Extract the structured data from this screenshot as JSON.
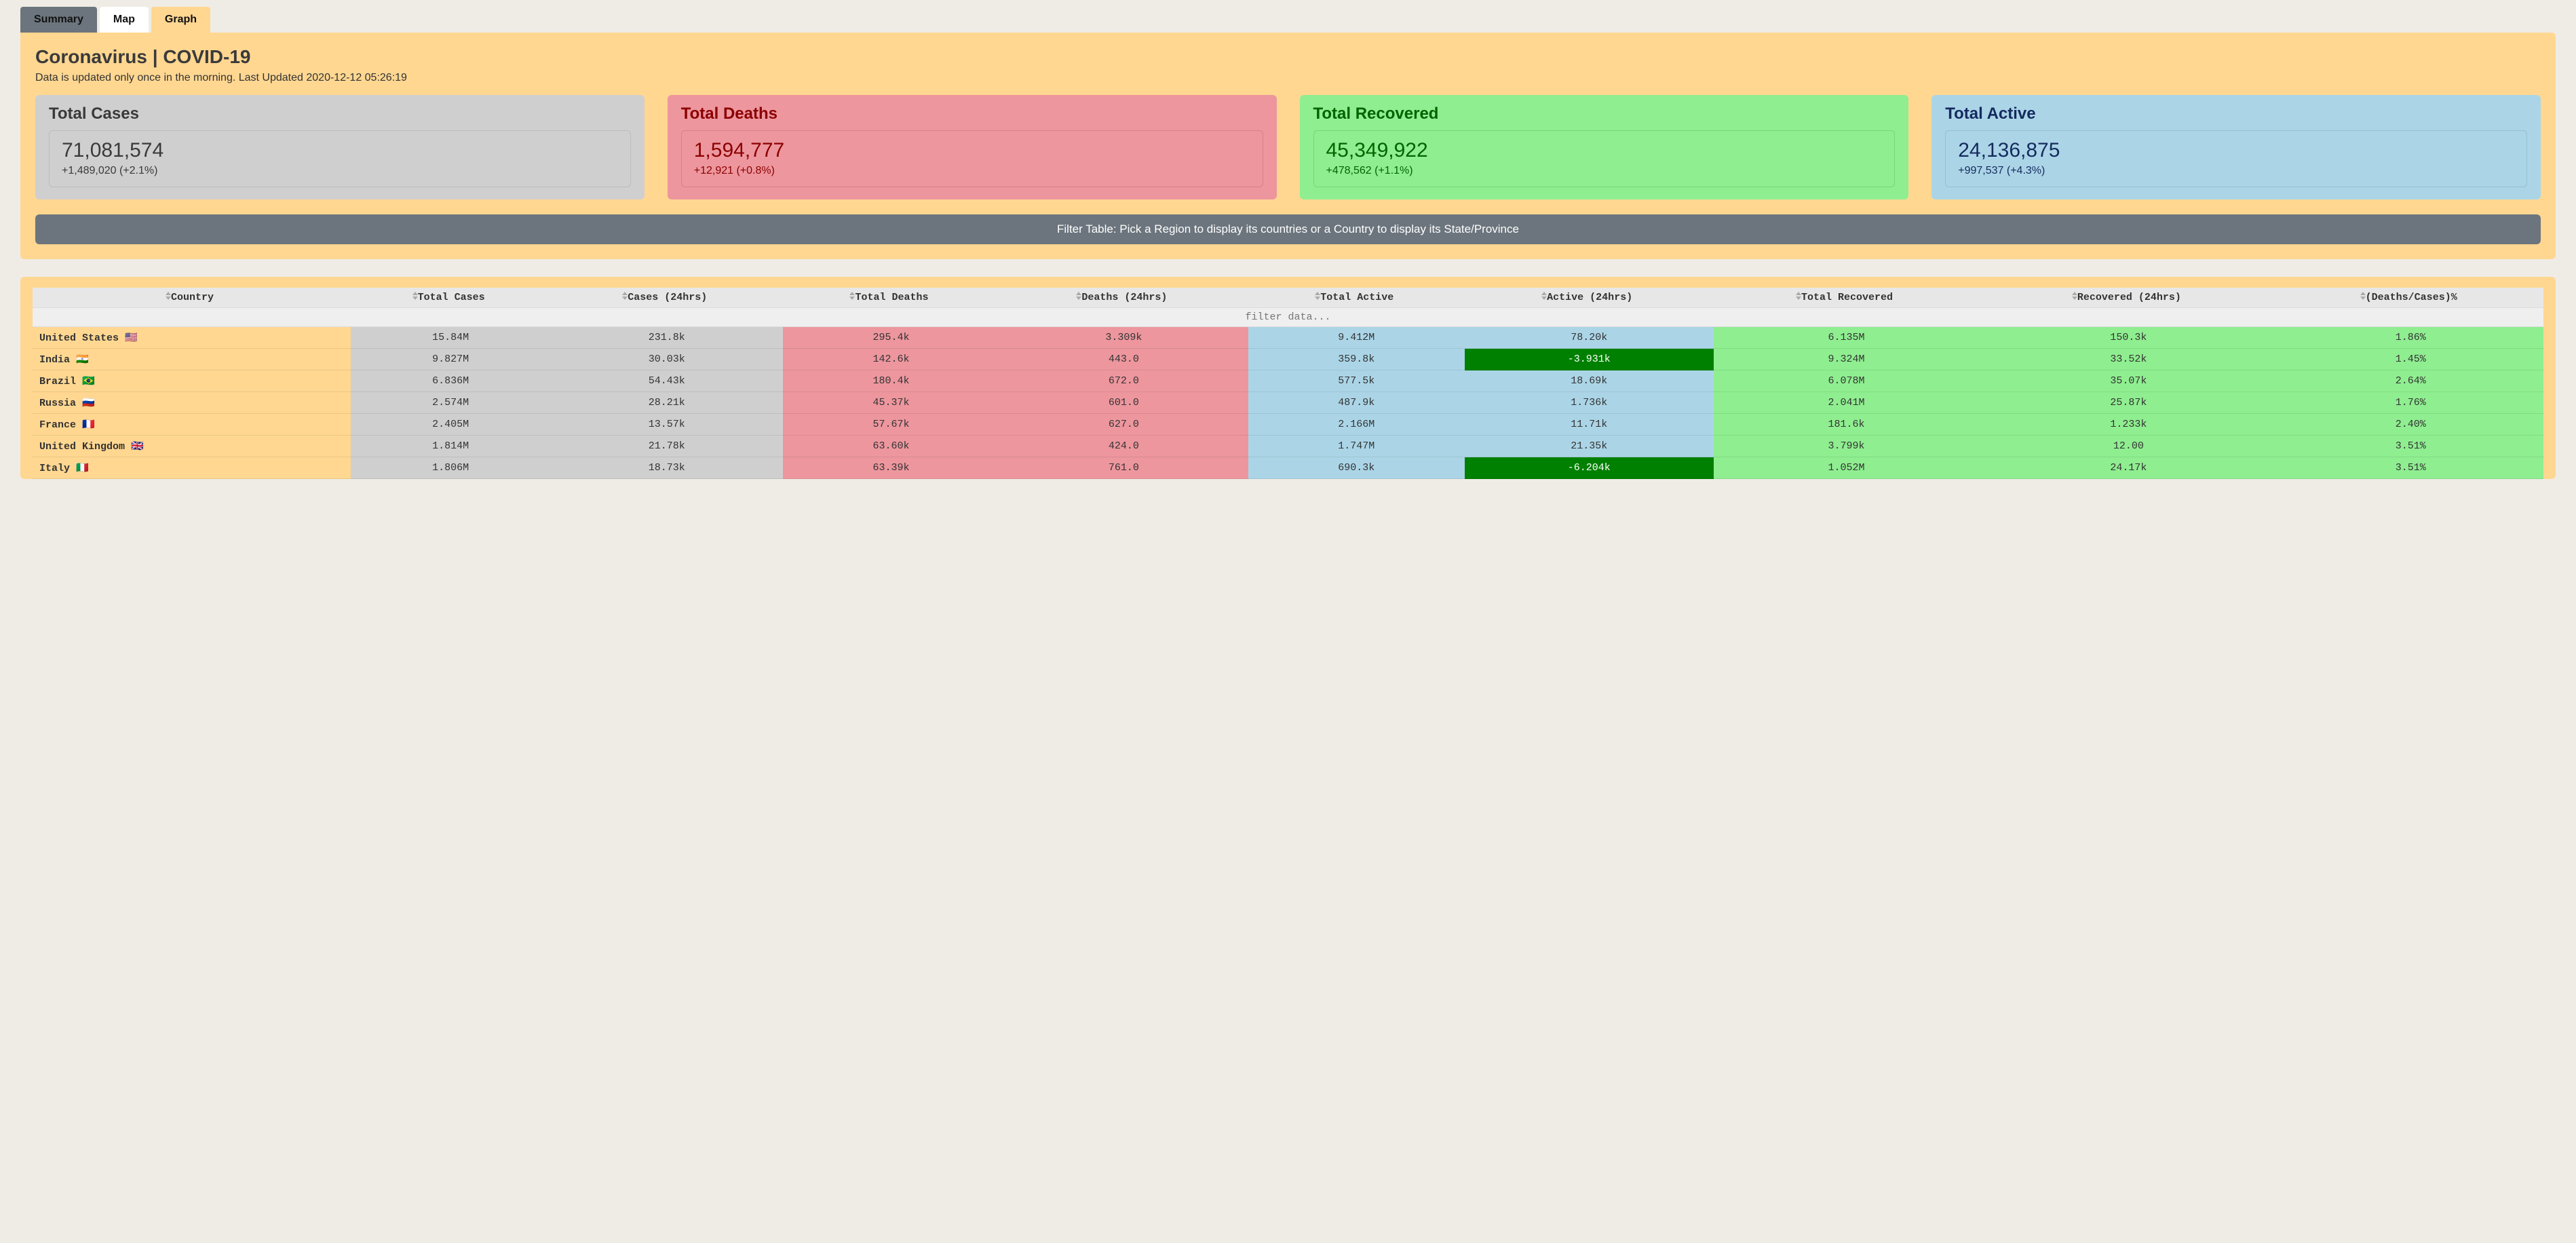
{
  "tabs": {
    "summary": "Summary",
    "map": "Map",
    "graph": "Graph"
  },
  "header": {
    "title": "Coronavirus | COVID-19",
    "subtitle": "Data is updated only once in the morning. Last Updated 2020-12-12 05:26:19"
  },
  "cards": {
    "cases": {
      "label": "Total Cases",
      "value": "71,081,574",
      "delta": "+1,489,020 (+2.1%)"
    },
    "deaths": {
      "label": "Total Deaths",
      "value": "1,594,777",
      "delta": "+12,921 (+0.8%)"
    },
    "recov": {
      "label": "Total Recovered",
      "value": "45,349,922",
      "delta": "+478,562 (+1.1%)"
    },
    "active": {
      "label": "Total Active",
      "value": "24,136,875",
      "delta": "+997,537 (+4.3%)"
    }
  },
  "filter_bar": "Filter Table: Pick a Region to display its countries or a Country to display its State/Province",
  "table": {
    "columns": [
      "Country",
      "Total Cases",
      "Cases (24hrs)",
      "Total Deaths",
      "Deaths (24hrs)",
      "Total Active",
      "Active (24hrs)",
      "Total Recovered",
      "Recovered (24hrs)",
      "(Deaths/Cases)%"
    ],
    "filter_placeholder": "filter data...",
    "rows": [
      {
        "country": "United States",
        "flag": "🇺🇸",
        "tc": "15.84M",
        "c24": "231.8k",
        "td": "295.4k",
        "d24": "3.309k",
        "ta": "9.412M",
        "a24": "78.20k",
        "a24_neg": false,
        "tr": "6.135M",
        "r24": "150.3k",
        "ratio": "1.86%"
      },
      {
        "country": "India",
        "flag": "🇮🇳",
        "tc": "9.827M",
        "c24": "30.03k",
        "td": "142.6k",
        "d24": "443.0",
        "ta": "359.8k",
        "a24": "-3.931k",
        "a24_neg": true,
        "tr": "9.324M",
        "r24": "33.52k",
        "ratio": "1.45%"
      },
      {
        "country": "Brazil",
        "flag": "🇧🇷",
        "tc": "6.836M",
        "c24": "54.43k",
        "td": "180.4k",
        "d24": "672.0",
        "ta": "577.5k",
        "a24": "18.69k",
        "a24_neg": false,
        "tr": "6.078M",
        "r24": "35.07k",
        "ratio": "2.64%"
      },
      {
        "country": "Russia",
        "flag": "🇷🇺",
        "tc": "2.574M",
        "c24": "28.21k",
        "td": "45.37k",
        "d24": "601.0",
        "ta": "487.9k",
        "a24": "1.736k",
        "a24_neg": false,
        "tr": "2.041M",
        "r24": "25.87k",
        "ratio": "1.76%"
      },
      {
        "country": "France",
        "flag": "🇫🇷",
        "tc": "2.405M",
        "c24": "13.57k",
        "td": "57.67k",
        "d24": "627.0",
        "ta": "2.166M",
        "a24": "11.71k",
        "a24_neg": false,
        "tr": "181.6k",
        "r24": "1.233k",
        "ratio": "2.40%"
      },
      {
        "country": "United Kingdom",
        "flag": "🇬🇧",
        "tc": "1.814M",
        "c24": "21.78k",
        "td": "63.60k",
        "d24": "424.0",
        "ta": "1.747M",
        "a24": "21.35k",
        "a24_neg": false,
        "tr": "3.799k",
        "r24": "12.00",
        "ratio": "3.51%"
      },
      {
        "country": "Italy",
        "flag": "🇮🇹",
        "tc": "1.806M",
        "c24": "18.73k",
        "td": "63.39k",
        "d24": "761.0",
        "ta": "690.3k",
        "a24": "-6.204k",
        "a24_neg": true,
        "tr": "1.052M",
        "r24": "24.17k",
        "ratio": "3.51%"
      }
    ]
  },
  "colors": {
    "page_bg": "#efece5",
    "accent_bg": "#ffd791",
    "cases_bg": "#d0cfcf",
    "deaths_bg": "#ed969e",
    "recov_bg": "#8fee90",
    "active_bg": "#abd5e7",
    "neg_bg": "#008000",
    "filter_bar_bg": "#6c757d"
  }
}
